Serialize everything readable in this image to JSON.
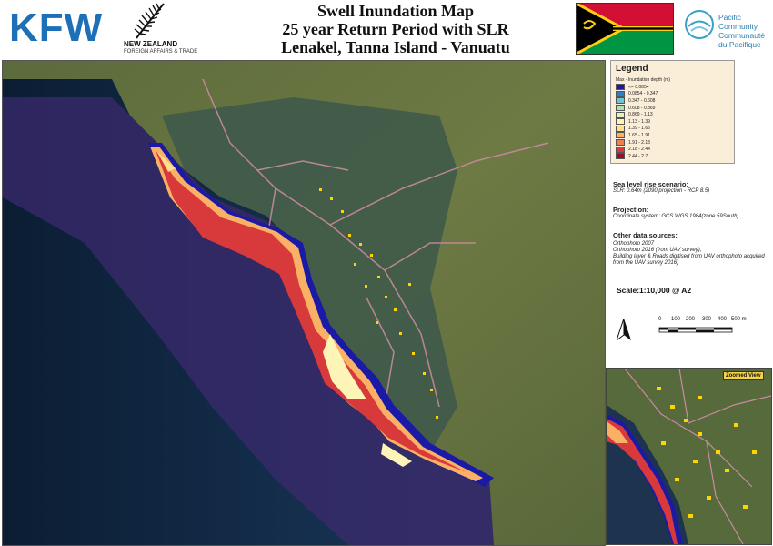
{
  "header": {
    "logo_kfw": "KFW",
    "nz_line1": "NEW ZEALAND",
    "nz_line2": "FOREIGN AFFAIRS & TRADE",
    "title_line1": "Swell Inundation Map",
    "title_line2": "25 year Return Period with SLR",
    "title_line3": "Lenakel, Tanna Island - Vanuatu",
    "spc_line1": "Pacific",
    "spc_line2": "Community",
    "spc_line3": "Communauté",
    "spc_line4": "du Pacifique"
  },
  "legend": {
    "title": "Legend",
    "subtitle": "Max - Inundation depth (m)",
    "items": [
      {
        "label": "<= 0.0854",
        "color": "#1a1aa6"
      },
      {
        "label": "0.0854 - 0.347",
        "color": "#2d7fc9"
      },
      {
        "label": "0.347 - 0.608",
        "color": "#6cc5d4"
      },
      {
        "label": "0.608 - 0.869",
        "color": "#b3e0b0"
      },
      {
        "label": "0.869 - 1.13",
        "color": "#e6f3b4"
      },
      {
        "label": "1.13 - 1.39",
        "color": "#fdf5b8"
      },
      {
        "label": "1.39 - 1.65",
        "color": "#fde08a"
      },
      {
        "label": "1.65 - 1.91",
        "color": "#fbb165"
      },
      {
        "label": "1.91 - 2.18",
        "color": "#f27d4d"
      },
      {
        "label": "2.18 - 2.44",
        "color": "#d8393b"
      },
      {
        "label": "2.44 - 2.7",
        "color": "#9c0d2a"
      }
    ]
  },
  "info": {
    "slr_heading": "Sea level rise scenario:",
    "slr_text": "SLR: 0.64m (2090 projection - RCP 8.5)",
    "proj_heading": "Projection:",
    "proj_text": "Coordinate system: GCS WGS 1984(zone 59South)",
    "sources_heading": "Other data sources:",
    "sources_line1": "Orthophoto 2007",
    "sources_line2": "Orthophoto 2016 (from UAV survey),",
    "sources_line3": "Building layer & Roads digitised from UAV orthophoto acquired",
    "sources_line4": "from the UAV survey 2016)",
    "scale": "Scale:1:10,000 @ A2",
    "scale_ticks": [
      "0",
      "100",
      "200",
      "300",
      "400",
      "500 m"
    ]
  },
  "zoom": {
    "label": "Zoomed View"
  }
}
